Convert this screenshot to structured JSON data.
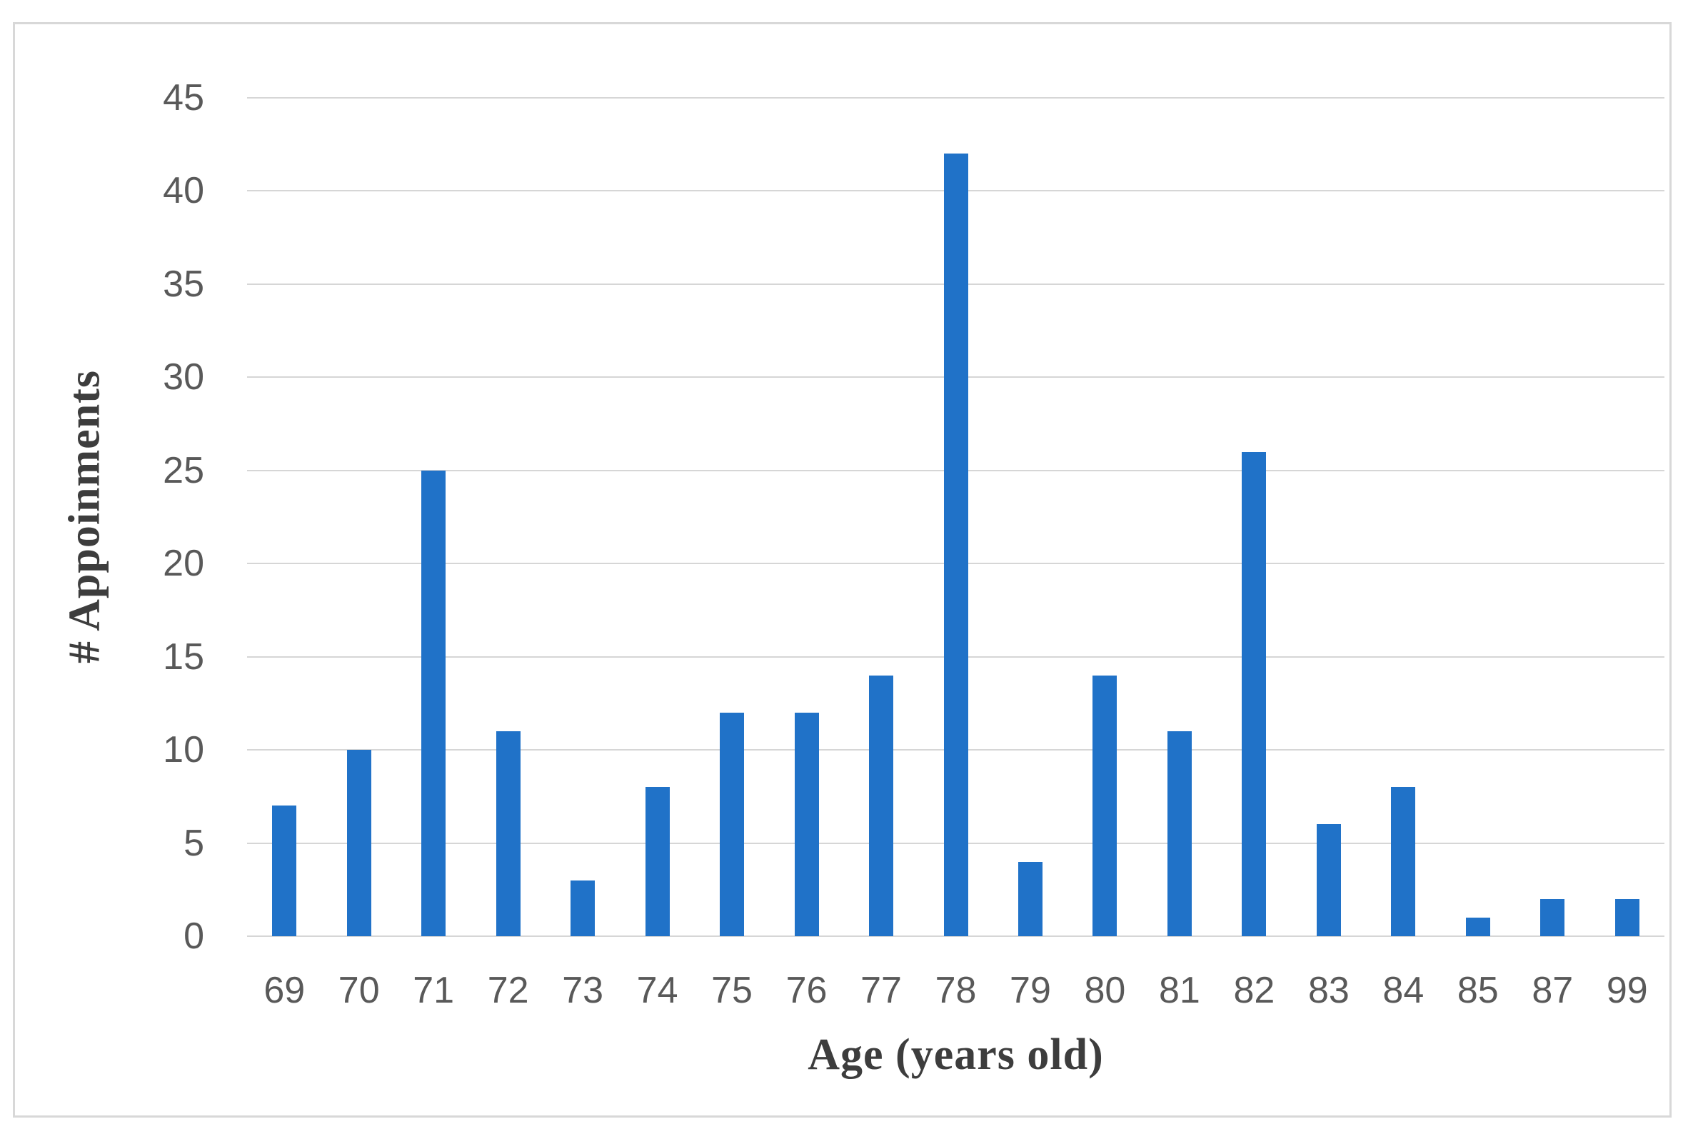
{
  "figure": {
    "background_color": "#ffffff",
    "border_color": "#d8d8d8"
  },
  "chart_data": {
    "type": "bar",
    "title": "",
    "xlabel": "Age (years old)",
    "ylabel": "# Appoinments",
    "categories": [
      "69",
      "70",
      "71",
      "72",
      "73",
      "74",
      "75",
      "76",
      "77",
      "78",
      "79",
      "80",
      "81",
      "82",
      "83",
      "84",
      "85",
      "87",
      "99"
    ],
    "values": [
      7,
      10,
      25,
      11,
      3,
      8,
      12,
      12,
      14,
      42,
      4,
      14,
      11,
      26,
      6,
      8,
      1,
      2,
      2
    ],
    "ylim": [
      0,
      45
    ],
    "yticks": [
      0,
      5,
      10,
      15,
      20,
      25,
      30,
      35,
      40,
      45
    ],
    "grid": "horizontal",
    "legend_position": "none",
    "bar_color": "#2072c8",
    "gridline_color": "#d6d6d6",
    "tick_label_color": "#595959",
    "axis_title_color": "#3d3d3d"
  }
}
